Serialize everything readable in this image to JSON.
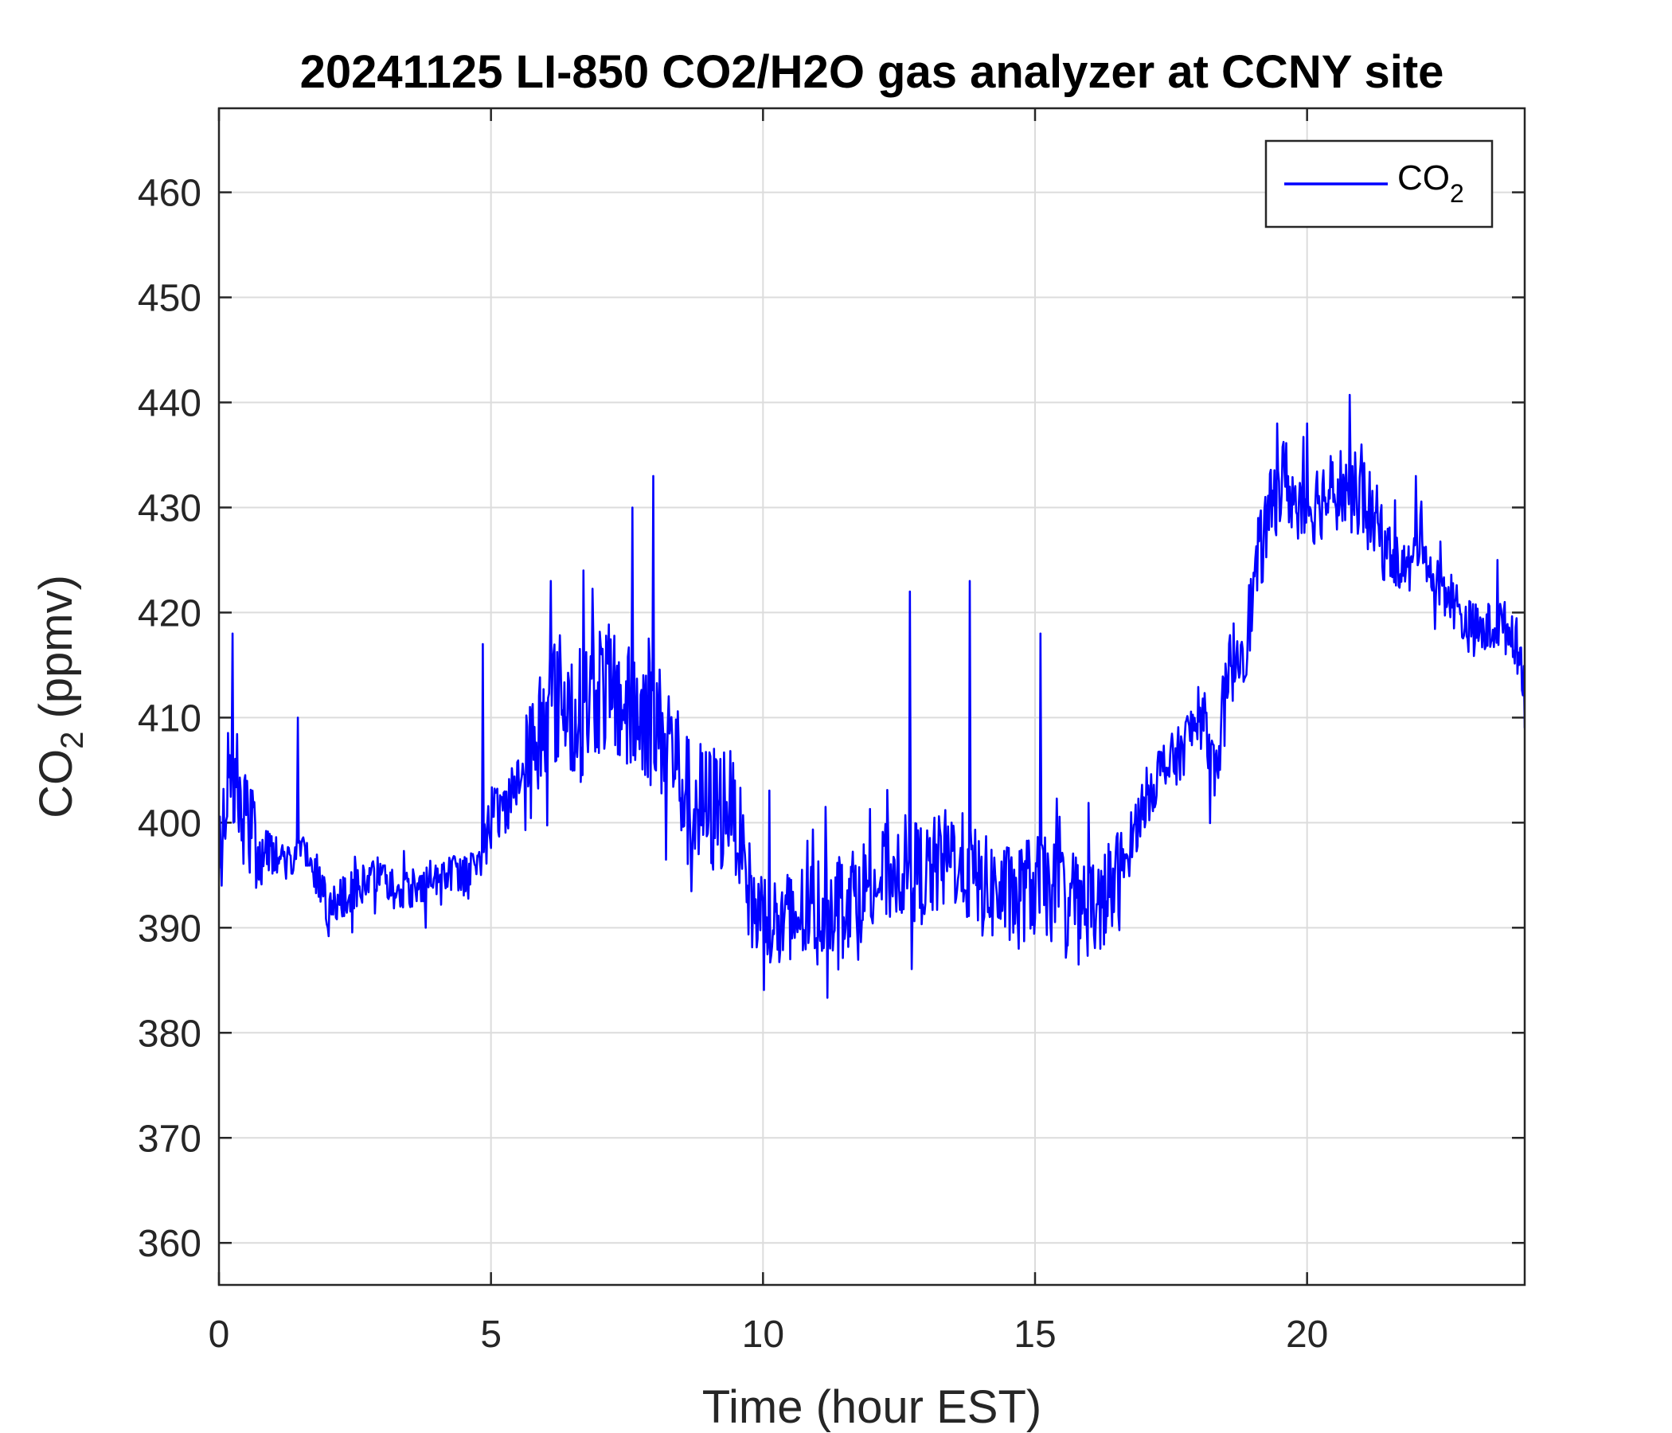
{
  "chart_data": {
    "type": "line",
    "title": "20241125 LI-850 CO2/H2O gas analyzer at CCNY site",
    "xlabel": "Time (hour EST)",
    "ylabel": {
      "base": "CO",
      "sub": "2",
      "rest": " (ppmv)"
    },
    "xlim": [
      0,
      24
    ],
    "ylim": [
      356,
      468
    ],
    "xticks": [
      0,
      5,
      10,
      15,
      20
    ],
    "yticks": [
      360,
      370,
      380,
      390,
      400,
      410,
      420,
      430,
      440,
      450,
      460
    ],
    "grid": true,
    "legend": {
      "position": "top-right",
      "entries": [
        {
          "base": "CO",
          "sub": "2"
        }
      ]
    },
    "colors": {
      "series": "#0000ff",
      "axes": "#262626",
      "grid": "#dcdcdc"
    },
    "series": [
      {
        "color": "#0000ff",
        "x": [
          0,
          0.2,
          0.4,
          0.7,
          1.0,
          1.3,
          1.5,
          1.8,
          2.0,
          2.3,
          2.6,
          3.0,
          3.3,
          3.6,
          4.0,
          4.5,
          4.8,
          5.0,
          5.3,
          5.6,
          5.8,
          6.0,
          6.3,
          6.6,
          7.0,
          7.3,
          7.6,
          7.8,
          8.0,
          8.3,
          8.6,
          9.0,
          9.4,
          9.6,
          9.8,
          10.0,
          10.3,
          10.6,
          11.0,
          11.5,
          12.0,
          12.5,
          13.0,
          13.5,
          14.0,
          14.5,
          15.0,
          15.5,
          16.0,
          16.3,
          16.6,
          16.8,
          17.0,
          17.3,
          17.6,
          17.9,
          18.1,
          18.3,
          18.6,
          18.9,
          19.1,
          19.4,
          19.6,
          19.8,
          20.0,
          20.3,
          20.6,
          21.0,
          21.3,
          21.6,
          21.9,
          22.1,
          22.3,
          22.6,
          22.9,
          23.2,
          23.5,
          23.8,
          24.0
        ],
        "values": [
          399,
          404,
          401,
          398,
          397,
          396,
          398,
          395,
          392,
          393,
          394,
          395,
          393,
          394,
          395,
          395,
          397,
          400,
          402,
          405,
          407,
          411,
          412,
          410,
          413,
          412,
          410,
          411,
          409,
          408,
          402,
          401,
          402,
          398,
          392,
          391,
          390,
          391,
          392,
          393,
          394,
          396,
          395,
          397,
          394,
          393,
          394,
          393,
          392,
          393,
          395,
          399,
          402,
          405,
          406,
          409,
          410,
          405,
          415,
          418,
          425,
          431,
          433,
          430,
          430,
          431,
          432,
          431,
          428,
          425,
          424,
          428,
          423,
          422,
          419,
          418,
          419,
          418,
          414
        ],
        "peaks": [
          {
            "x": 0.25,
            "value": 418
          },
          {
            "x": 1.45,
            "value": 410
          },
          {
            "x": 4.85,
            "value": 417
          },
          {
            "x": 6.1,
            "value": 423
          },
          {
            "x": 6.7,
            "value": 424
          },
          {
            "x": 7.6,
            "value": 430
          },
          {
            "x": 7.98,
            "value": 433
          },
          {
            "x": 12.7,
            "value": 422
          },
          {
            "x": 13.8,
            "value": 423
          },
          {
            "x": 15.1,
            "value": 418
          },
          {
            "x": 19.45,
            "value": 438
          },
          {
            "x": 20.0,
            "value": 438
          },
          {
            "x": 21.0,
            "value": 436
          },
          {
            "x": 22.0,
            "value": 433
          },
          {
            "x": 23.5,
            "value": 425
          }
        ],
        "troughs": [
          {
            "x": 0.05,
            "value": 394
          },
          {
            "x": 2.0,
            "value": 390
          },
          {
            "x": 3.8,
            "value": 390
          },
          {
            "x": 10.5,
            "value": 387
          },
          {
            "x": 11.0,
            "value": 386.5
          },
          {
            "x": 14.7,
            "value": 388
          },
          {
            "x": 15.8,
            "value": 386.5
          },
          {
            "x": 16.2,
            "value": 388
          },
          {
            "x": 24.0,
            "value": 409
          }
        ]
      }
    ]
  }
}
